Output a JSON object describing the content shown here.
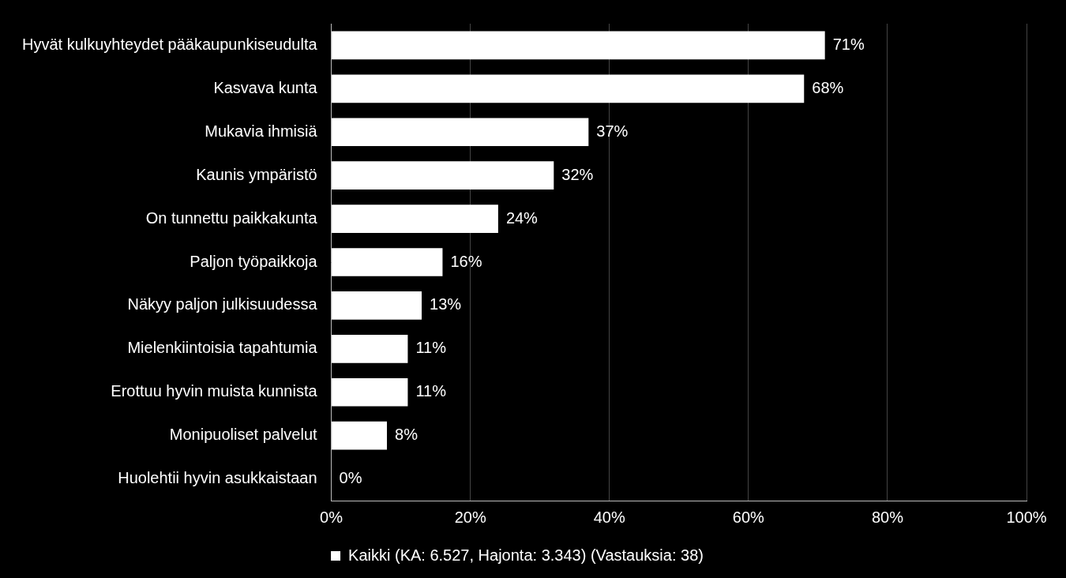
{
  "chart_data": {
    "type": "bar",
    "orientation": "horizontal",
    "categories": [
      "Hyvät kulkuyhteydet pääkaupunkiseudulta",
      "Kasvava kunta",
      "Mukavia ihmisiä",
      "Kaunis ympäristö",
      "On tunnettu paikkakunta",
      "Paljon työpaikkoja",
      "Näkyy paljon julkisuudessa",
      "Mielenkiintoisia tapahtumia",
      "Erottuu hyvin muista kunnista",
      "Monipuoliset palvelut",
      "Huolehtii hyvin asukkaistaan"
    ],
    "series": [
      {
        "name": "Kaikki (KA: 6.527, Hajonta: 3.343) (Vastauksia: 38)",
        "color": "#ffffff",
        "values": [
          71,
          68,
          37,
          32,
          24,
          16,
          13,
          11,
          11,
          8,
          0
        ],
        "value_labels": [
          "71%",
          "68%",
          "37%",
          "32%",
          "24%",
          "16%",
          "13%",
          "11%",
          "11%",
          "8%",
          "0%"
        ]
      }
    ],
    "xlim": [
      0,
      100
    ],
    "xticks": [
      {
        "value": 0,
        "label": "0%"
      },
      {
        "value": 20,
        "label": "20%"
      },
      {
        "value": 40,
        "label": "40%"
      },
      {
        "value": 60,
        "label": "60%"
      },
      {
        "value": 80,
        "label": "80%"
      },
      {
        "value": 100,
        "label": "100%"
      }
    ],
    "grid": true,
    "data_labels": true,
    "legend": "bottom"
  }
}
